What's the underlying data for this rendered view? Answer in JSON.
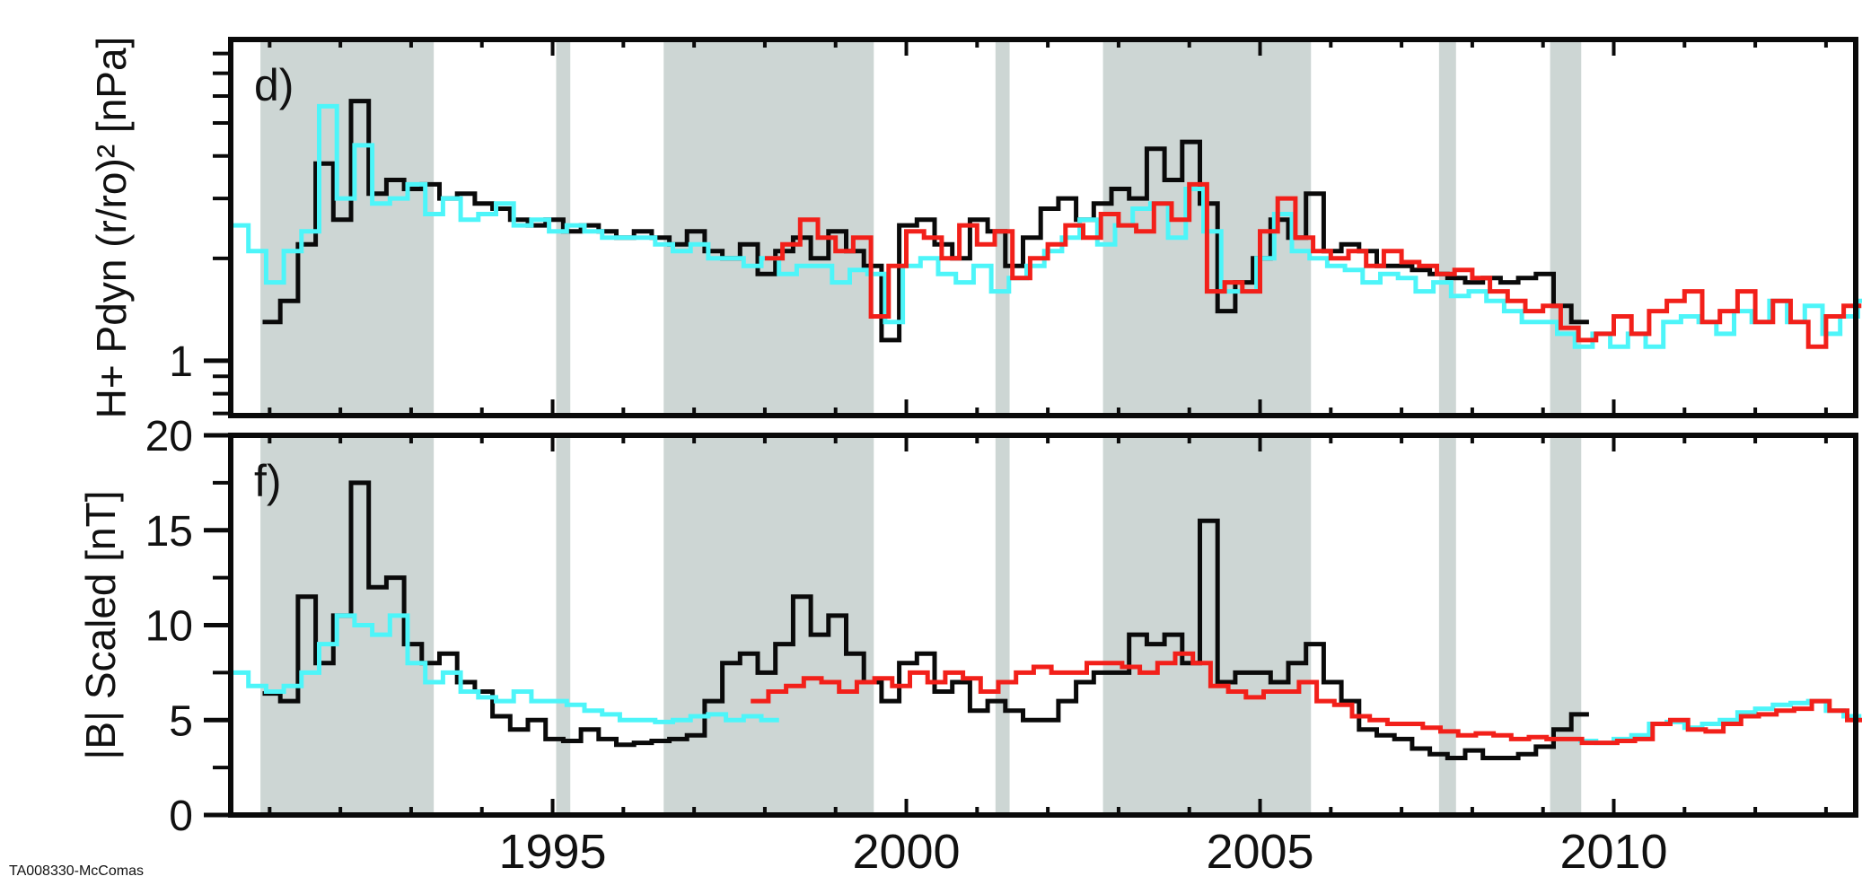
{
  "footer": "TA008330-McComas",
  "colors": {
    "black": "#0a0a0a",
    "cyan": "#4df5f9",
    "red": "#f2201a",
    "band": "#cdd6d4"
  },
  "chart_data": [
    {
      "type": "line",
      "panel_label": "d)",
      "ylabel": "H+ Pdyn (r/ro)² [nPa]",
      "yscale": "log",
      "ylim": [
        0.69,
        8.8
      ],
      "xlim": [
        1990.45,
        2013.42
      ],
      "yticks_labeled": [
        {
          "value": 1,
          "label": "1"
        }
      ],
      "yticks_minor": [
        0.7,
        0.8,
        0.9,
        2,
        3,
        4,
        5,
        6,
        7,
        8
      ],
      "shaded_intervals": [
        [
          1990.87,
          1993.32
        ],
        [
          1995.05,
          1995.25
        ],
        [
          1996.57,
          1999.54
        ],
        [
          2001.26,
          2001.46
        ],
        [
          2002.78,
          2005.72
        ],
        [
          2007.53,
          2007.77
        ],
        [
          2009.1,
          2009.54
        ]
      ],
      "series": [
        {
          "name": "black",
          "color": "#0a0a0a",
          "x_start": 1990.9,
          "x_step": 0.25,
          "values": [
            1.3,
            1.5,
            2.2,
            3.8,
            2.6,
            5.8,
            3.1,
            3.4,
            3.2,
            3.3,
            3.0,
            3.1,
            2.9,
            2.8,
            2.6,
            2.5,
            2.6,
            2.4,
            2.5,
            2.4,
            2.3,
            2.4,
            2.3,
            2.2,
            2.4,
            2.1,
            2.0,
            2.2,
            1.8,
            2.1,
            2.3,
            2.0,
            2.4,
            2.1,
            1.9,
            1.15,
            2.5,
            2.6,
            2.2,
            2.0,
            2.6,
            2.4,
            1.9,
            2.3,
            2.8,
            3.0,
            2.6,
            2.9,
            3.2,
            3.0,
            4.2,
            3.4,
            4.4,
            2.9,
            1.4,
            1.7,
            2.0,
            2.6,
            2.3,
            3.1,
            2.1,
            2.2,
            2.1,
            1.9,
            1.9,
            1.85,
            1.8,
            1.75,
            1.7,
            1.75,
            1.7,
            1.75,
            1.8,
            1.45,
            1.3
          ]
        },
        {
          "name": "cyan",
          "color": "#4df5f9",
          "x_start": 1990.45,
          "x_step": 0.25,
          "values": [
            2.5,
            2.1,
            1.7,
            2.1,
            2.4,
            5.6,
            3.0,
            4.3,
            2.9,
            3.0,
            3.3,
            2.7,
            3.0,
            2.6,
            2.7,
            2.9,
            2.5,
            2.6,
            2.4,
            2.5,
            2.4,
            2.3,
            2.3,
            2.3,
            2.2,
            2.1,
            2.2,
            2.0,
            2.0,
            1.9,
            2.0,
            1.8,
            1.9,
            1.9,
            1.7,
            1.85,
            1.8,
            1.3,
            1.9,
            2.0,
            1.8,
            1.7,
            1.9,
            1.6,
            1.75,
            1.9,
            2.1,
            2.3,
            2.6,
            2.2,
            2.5,
            2.8,
            2.9,
            2.3,
            3.2,
            2.4,
            1.6,
            1.6,
            2.0,
            2.7,
            2.1,
            2.0,
            1.9,
            1.85,
            1.7,
            1.8,
            1.75,
            1.6,
            1.7,
            1.55,
            1.6,
            1.5,
            1.4,
            1.3,
            1.3,
            1.2,
            1.1,
            1.2,
            1.1,
            1.2,
            1.1,
            1.3,
            1.35,
            1.3,
            1.2,
            1.4,
            1.3,
            1.5,
            1.3,
            1.45,
            1.2,
            1.35,
            1.5
          ]
        },
        {
          "name": "red",
          "color": "#f2201a",
          "x_start": 1998.0,
          "x_step": 0.25,
          "values": [
            2.0,
            2.2,
            2.6,
            2.3,
            2.1,
            2.3,
            1.35,
            1.9,
            2.4,
            2.3,
            2.0,
            2.5,
            2.2,
            2.4,
            1.75,
            2.0,
            2.2,
            2.5,
            2.3,
            2.7,
            2.5,
            2.4,
            2.9,
            2.6,
            3.3,
            1.6,
            1.7,
            1.6,
            2.4,
            3.0,
            2.3,
            2.1,
            2.0,
            2.1,
            1.9,
            2.1,
            1.95,
            1.9,
            1.8,
            1.85,
            1.75,
            1.6,
            1.5,
            1.4,
            1.45,
            1.25,
            1.15,
            1.2,
            1.35,
            1.2,
            1.4,
            1.5,
            1.6,
            1.3,
            1.4,
            1.6,
            1.3,
            1.5,
            1.3,
            1.1,
            1.35,
            1.45
          ]
        }
      ]
    },
    {
      "type": "line",
      "panel_label": "f)",
      "ylabel": "|B| Scaled [nT]",
      "yscale": "linear",
      "ylim": [
        0,
        20
      ],
      "xlim": [
        1990.45,
        2013.42
      ],
      "yticks_labeled": [
        {
          "value": 20,
          "label": "20"
        },
        {
          "value": 15,
          "label": "15"
        },
        {
          "value": 10,
          "label": "10"
        },
        {
          "value": 5,
          "label": "5"
        },
        {
          "value": 0,
          "label": "0"
        }
      ],
      "yticks_minor": [
        2.5,
        7.5,
        12.5,
        17.5
      ],
      "xticks": [
        {
          "value": 1995,
          "label": "1995"
        },
        {
          "value": 2000,
          "label": "2000"
        },
        {
          "value": 2005,
          "label": "2005"
        },
        {
          "value": 2010,
          "label": "2010"
        }
      ],
      "shaded_intervals": [
        [
          1990.87,
          1993.32
        ],
        [
          1995.05,
          1995.25
        ],
        [
          1996.57,
          1999.54
        ],
        [
          2001.26,
          2001.46
        ],
        [
          2002.78,
          2005.72
        ],
        [
          2007.53,
          2007.77
        ],
        [
          2009.1,
          2009.54
        ]
      ],
      "series": [
        {
          "name": "black",
          "color": "#0a0a0a",
          "x_start": 1990.9,
          "x_step": 0.25,
          "values": [
            6.4,
            6.0,
            11.5,
            8.0,
            10.5,
            17.5,
            12.0,
            12.5,
            9.0,
            8.0,
            8.5,
            7.0,
            6.5,
            5.2,
            4.5,
            5.0,
            4.0,
            3.9,
            4.5,
            4.0,
            3.7,
            3.8,
            3.9,
            4.0,
            4.2,
            6.0,
            8.0,
            8.5,
            7.5,
            9.0,
            11.5,
            9.5,
            10.5,
            8.5,
            7.0,
            6.0,
            8.0,
            8.5,
            6.5,
            7.0,
            5.5,
            6.0,
            5.5,
            5.0,
            5.0,
            6.0,
            7.0,
            7.5,
            7.5,
            9.5,
            9.0,
            9.5,
            8.0,
            15.5,
            7.0,
            7.5,
            7.5,
            7.0,
            8.0,
            9.0,
            7.0,
            6.0,
            4.5,
            4.2,
            4.0,
            3.5,
            3.2,
            3.0,
            3.4,
            3.0,
            3.0,
            3.2,
            3.6,
            4.5,
            5.3
          ]
        },
        {
          "name": "cyan",
          "color": "#4df5f9",
          "x_start": 1990.45,
          "x_step": 0.25,
          "values": [
            7.5,
            6.8,
            6.5,
            6.8,
            7.5,
            9.0,
            10.5,
            10.0,
            9.5,
            10.5,
            8.0,
            7.0,
            7.5,
            6.5,
            6.2,
            6.0,
            6.5,
            6.0,
            6.0,
            5.8,
            5.5,
            5.3,
            5.0,
            5.0,
            4.9,
            5.0,
            5.2,
            5.3,
            5.0,
            5.2,
            5.0
          ]
        },
        {
          "name": "cyan-late",
          "color": "#4df5f9",
          "x_start": 2009.5,
          "x_step": 0.25,
          "values": [
            3.9,
            3.8,
            4.0,
            4.2,
            4.8,
            4.9,
            4.6,
            4.8,
            5.0,
            5.4,
            5.6,
            5.8,
            5.9,
            6.0,
            5.5,
            5.2
          ]
        },
        {
          "name": "red",
          "color": "#f2201a",
          "x_start": 1997.8,
          "x_step": 0.25,
          "values": [
            6.0,
            6.5,
            6.8,
            7.2,
            7.0,
            6.5,
            7.0,
            7.2,
            6.8,
            7.5,
            7.0,
            7.5,
            7.2,
            6.5,
            7.0,
            7.5,
            7.8,
            7.5,
            7.5,
            8.0,
            8.0,
            7.8,
            7.5,
            8.0,
            8.5,
            8.0,
            6.8,
            6.5,
            6.2,
            6.5,
            6.5,
            7.0,
            6.0,
            5.8,
            5.2,
            5.0,
            4.8,
            4.8,
            4.6,
            4.4,
            4.2,
            4.3,
            4.2,
            4.0,
            4.1,
            4.0,
            4.0,
            3.8,
            3.8,
            3.9,
            4.0,
            4.8,
            5.0,
            4.5,
            4.4,
            4.8,
            5.2,
            5.3,
            5.5,
            5.6,
            6.0,
            5.5,
            5.0
          ]
        }
      ]
    }
  ]
}
